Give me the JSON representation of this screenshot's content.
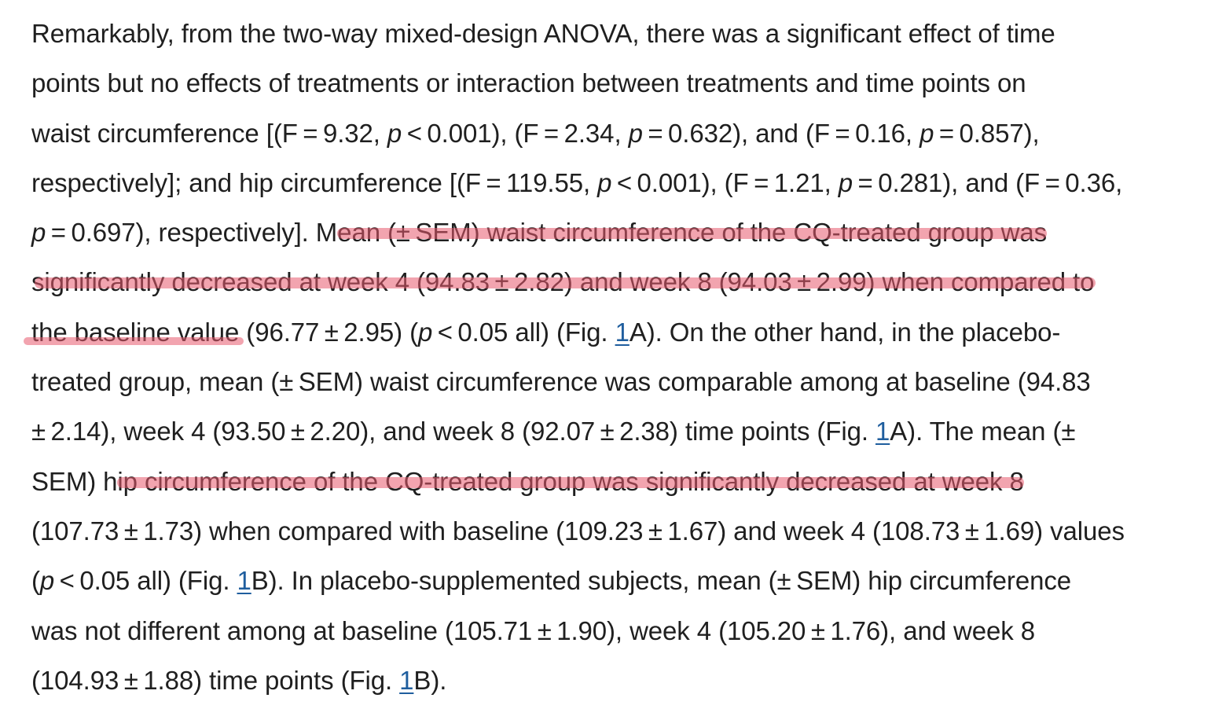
{
  "document": {
    "lines": [
      [
        {
          "t": "Remarkably, from the two-way mixed-design ANOVA, there was a significant effect of time"
        }
      ],
      [
        {
          "t": "points but no effects of treatments or interaction between treatments and time points on"
        }
      ],
      [
        {
          "t": "waist circumference [(F = 9.32, "
        },
        {
          "t": "p",
          "s": "it"
        },
        {
          "t": " < 0.001), (F = 2.34, "
        },
        {
          "t": "p",
          "s": "it"
        },
        {
          "t": " = 0.632), and (F = 0.16, "
        },
        {
          "t": "p",
          "s": "it"
        },
        {
          "t": " = 0.857),"
        }
      ],
      [
        {
          "t": "respectively]; and hip circumference [(F = 119.55, "
        },
        {
          "t": "p",
          "s": "it"
        },
        {
          "t": " < 0.001), (F = 1.21, "
        },
        {
          "t": "p",
          "s": "it"
        },
        {
          "t": " = 0.281), and (F = 0.36,"
        }
      ],
      [
        {
          "t": "p",
          "s": "it"
        },
        {
          "t": " = 0.697), respectively]. Mean (± SEM) waist circumference of the CQ-treated group was"
        }
      ],
      [
        {
          "t": "significantly decreased at week 4 (94.83 ± 2.82) and week 8 (94.03 ± 2.99) when compared to"
        }
      ],
      [
        {
          "t": "the baseline value (96.77 ± 2.95) ("
        },
        {
          "t": "p",
          "s": "it"
        },
        {
          "t": " < 0.05 all) (Fig. "
        },
        {
          "t": "1",
          "s": "link"
        },
        {
          "t": "A). On the other hand, in the placebo-"
        }
      ],
      [
        {
          "t": "treated group, mean (± SEM) waist circumference was comparable among at baseline (94.83"
        }
      ],
      [
        {
          "t": "± 2.14), week 4 (93.50 ± 2.20), and week 8 (92.07 ± 2.38) time points (Fig. "
        },
        {
          "t": "1",
          "s": "link"
        },
        {
          "t": "A). The mean (±"
        }
      ],
      [
        {
          "t": "SEM) hip circumference of the CQ-treated group was significantly decreased at week 8"
        }
      ],
      [
        {
          "t": "(107.73 ± 1.73) when compared with baseline (109.23 ± 1.67) and week 4 (108.73 ± 1.69) values"
        }
      ],
      [
        {
          "t": "("
        },
        {
          "t": "p",
          "s": "it"
        },
        {
          "t": " < 0.05 all) (Fig. "
        },
        {
          "t": "1",
          "s": "link"
        },
        {
          "t": "B). In placebo-supplemented subjects, mean (± SEM) hip circumference"
        }
      ],
      [
        {
          "t": "was not different among at baseline (105.71 ± 1.90), week 4 (105.20 ± 1.76), and week 8"
        }
      ],
      [
        {
          "t": "(104.93 ± 1.88) time points (Fig. "
        },
        {
          "t": "1",
          "s": "link"
        },
        {
          "t": "B)."
        }
      ]
    ]
  },
  "highlight": {
    "color": "#e85a6e"
  }
}
